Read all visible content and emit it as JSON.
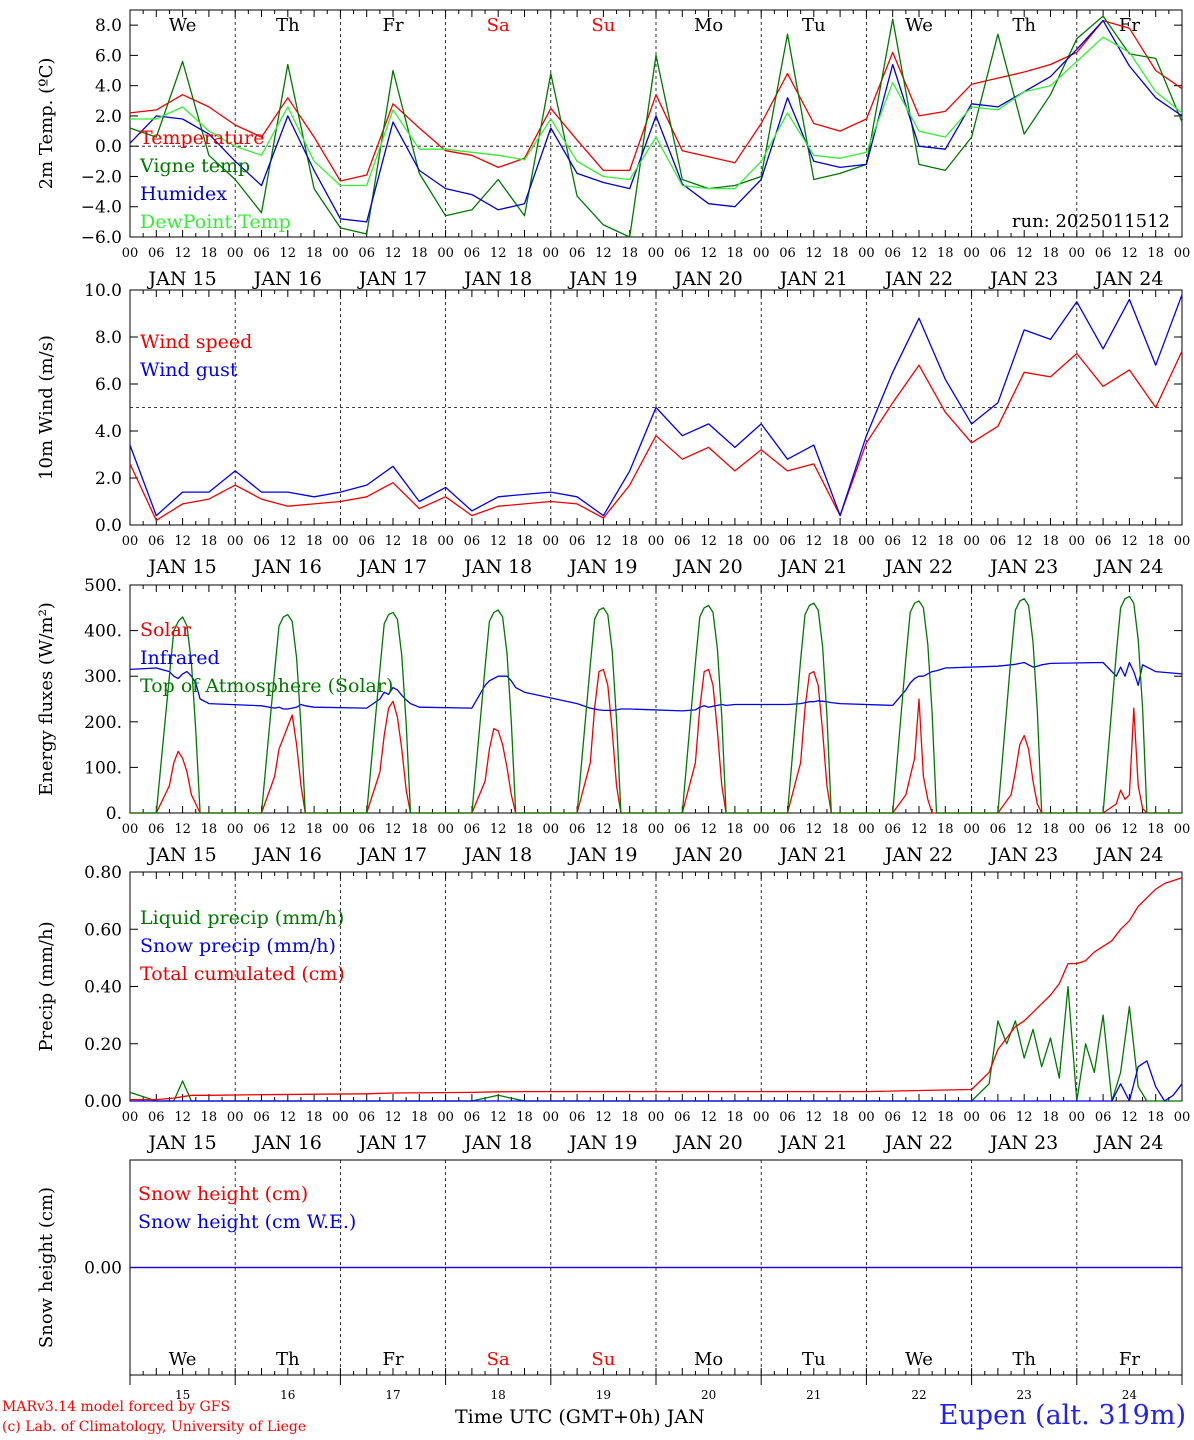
{
  "time_axis": {
    "start_day": 15,
    "days": 10,
    "step_hours": 6,
    "hour_labels": [
      "00",
      "06",
      "12",
      "18"
    ],
    "date_labels": [
      "JAN 15",
      "JAN 16",
      "JAN 17",
      "JAN 18",
      "JAN 19",
      "JAN 20",
      "JAN 21",
      "JAN 22",
      "JAN 23",
      "JAN 24"
    ],
    "weekday_labels": [
      "We",
      "Th",
      "Fr",
      "Sa",
      "Su",
      "Mo",
      "Tu",
      "We",
      "Th",
      "Fr"
    ],
    "weekday_colors": [
      "#000000",
      "#000000",
      "#000000",
      "#ff0000",
      "#ff0000",
      "#000000",
      "#000000",
      "#000000",
      "#000000",
      "#000000"
    ],
    "day_numbers": [
      "15",
      "16",
      "17",
      "18",
      "19",
      "20",
      "21",
      "22",
      "23",
      "24"
    ],
    "title": "Time UTC (GMT+0h) JAN"
  },
  "credits": {
    "line1": "MARv3.14 model forced by GFS",
    "line2": "(c) Lab. of Climatology, University of Liege"
  },
  "station": "Eupen (alt. 319m)",
  "chart_data": [
    {
      "type": "line",
      "ylabel": "2m Temp. (ºC)",
      "ylim": [
        -6,
        9
      ],
      "yticks": [
        -6,
        -4,
        -2,
        0,
        2,
        4,
        6,
        8
      ],
      "ytick_labels": [
        "−6.0",
        "−4.0",
        "−2.0",
        "0.0",
        "2.0",
        "4.0",
        "6.0",
        "8.0"
      ],
      "reference_line": 0,
      "annotation": "run: 2025011512",
      "x_hours": [
        0,
        6,
        12,
        18,
        24,
        30,
        36,
        42,
        48,
        54,
        60,
        66,
        72,
        78,
        84,
        90,
        96,
        102,
        108,
        114,
        120,
        126,
        132,
        138,
        144,
        150,
        156,
        162,
        168,
        174,
        180,
        186,
        192,
        198,
        204,
        210,
        216,
        222,
        228,
        234,
        240
      ],
      "series": [
        {
          "name": "Temperature",
          "color": "#ee0000",
          "values": [
            2.2,
            2.4,
            3.4,
            2.6,
            1.4,
            0.6,
            3.2,
            0.6,
            -2.3,
            -1.9,
            2.8,
            1.2,
            -0.3,
            -0.6,
            -1.4,
            -0.8,
            2.5,
            0.4,
            -1.6,
            -1.6,
            3.4,
            -0.3,
            -0.7,
            -1.1,
            1.5,
            4.8,
            1.5,
            1.0,
            1.8,
            6.2,
            2.0,
            2.3,
            4.1,
            4.5,
            4.9,
            5.4,
            6.2,
            8.3,
            7.8,
            5.0,
            3.8
          ]
        },
        {
          "name": "Vigne temp",
          "color": "#007700",
          "values": [
            1.2,
            0.6,
            5.6,
            -0.6,
            -2.2,
            -4.4,
            5.4,
            -2.8,
            -5.4,
            -5.8,
            5.0,
            -1.8,
            -4.6,
            -4.2,
            -2.2,
            -4.6,
            4.8,
            -3.3,
            -5.2,
            -6.0,
            6.0,
            -2.2,
            -2.8,
            -2.6,
            -2.0,
            7.4,
            -2.2,
            -1.8,
            -1.2,
            8.4,
            -1.2,
            -1.6,
            0.6,
            7.4,
            0.8,
            3.4,
            7.1,
            8.6,
            6.1,
            5.8,
            1.6
          ]
        },
        {
          "name": "Humidex",
          "color": "#0000cc",
          "values": [
            0.2,
            2.0,
            1.8,
            0.8,
            -1.0,
            -2.6,
            2.0,
            -1.6,
            -4.8,
            -5.0,
            1.6,
            -1.6,
            -2.8,
            -3.2,
            -4.2,
            -3.8,
            1.2,
            -1.8,
            -2.4,
            -2.8,
            2.0,
            -2.5,
            -3.8,
            -4.0,
            -2.2,
            3.2,
            -1.0,
            -1.4,
            -1.2,
            5.4,
            0.0,
            -0.2,
            2.8,
            2.6,
            3.6,
            4.6,
            6.4,
            8.3,
            5.3,
            3.2,
            2.0
          ]
        },
        {
          "name": "DewPoint Temp",
          "color": "#33ee33",
          "values": [
            1.8,
            1.8,
            2.6,
            1.0,
            0.0,
            -0.6,
            2.6,
            -1.0,
            -2.6,
            -2.6,
            2.4,
            -0.2,
            -0.2,
            -0.4,
            -0.6,
            -0.9,
            1.8,
            -1.0,
            -2.0,
            -2.2,
            0.6,
            -2.6,
            -2.8,
            -2.8,
            -1.0,
            2.2,
            -0.6,
            -0.8,
            -0.4,
            4.2,
            1.0,
            0.6,
            2.6,
            2.4,
            3.6,
            4.0,
            5.6,
            7.2,
            6.2,
            3.6,
            2.2
          ]
        }
      ]
    },
    {
      "type": "line",
      "ylabel": "10m Wind (m/s)",
      "ylim": [
        0,
        10
      ],
      "yticks": [
        0,
        2,
        4,
        6,
        8,
        10
      ],
      "ytick_labels": [
        "0.0",
        "2.0",
        "4.0",
        "6.0",
        "8.0",
        "10.0"
      ],
      "reference_line": 5,
      "x_hours": [
        0,
        6,
        12,
        18,
        24,
        30,
        36,
        42,
        48,
        54,
        60,
        66,
        72,
        78,
        84,
        90,
        96,
        102,
        108,
        114,
        120,
        126,
        132,
        138,
        144,
        150,
        156,
        162,
        168,
        174,
        180,
        186,
        192,
        198,
        204,
        210,
        216,
        222,
        228,
        234,
        240
      ],
      "series": [
        {
          "name": "Wind speed",
          "color": "#ee0000",
          "values": [
            2.6,
            0.2,
            0.9,
            1.1,
            1.7,
            1.1,
            0.8,
            0.9,
            1.0,
            1.2,
            1.8,
            0.7,
            1.2,
            0.4,
            0.8,
            0.9,
            1.0,
            0.9,
            0.3,
            1.7,
            3.8,
            2.8,
            3.3,
            2.3,
            3.2,
            2.3,
            2.6,
            0.4,
            3.5,
            5.2,
            6.8,
            4.8,
            3.5,
            4.2,
            6.5,
            6.3,
            7.3,
            5.9,
            6.6,
            5.0,
            7.4
          ]
        },
        {
          "name": "Wind gust",
          "color": "#0000ee",
          "values": [
            3.4,
            0.4,
            1.4,
            1.4,
            2.3,
            1.4,
            1.4,
            1.2,
            1.4,
            1.7,
            2.5,
            1.0,
            1.6,
            0.6,
            1.2,
            1.3,
            1.4,
            1.2,
            0.4,
            2.3,
            5.0,
            3.8,
            4.3,
            3.3,
            4.3,
            2.8,
            3.4,
            0.4,
            3.8,
            6.5,
            8.8,
            6.2,
            4.3,
            5.2,
            8.3,
            7.9,
            9.5,
            7.5,
            9.6,
            6.8,
            9.8
          ]
        }
      ]
    },
    {
      "type": "line",
      "ylabel": "Energy fluxes (W/m²)",
      "ylim": [
        0,
        500
      ],
      "yticks": [
        0,
        100,
        200,
        300,
        400,
        500
      ],
      "ytick_labels": [
        "0.",
        "100.",
        "200.",
        "300.",
        "400.",
        "500."
      ],
      "x_hours": [
        0,
        6,
        9,
        10,
        11,
        12,
        13,
        14,
        15,
        16,
        18,
        30,
        33,
        34,
        35,
        36,
        37,
        38,
        39,
        40,
        42,
        54,
        57,
        58,
        59,
        60,
        61,
        62,
        63,
        64,
        66,
        78,
        81,
        82,
        83,
        84,
        85,
        86,
        87,
        88,
        90,
        102,
        105,
        106,
        107,
        108,
        109,
        110,
        111,
        112,
        114,
        126,
        129,
        130,
        131,
        132,
        133,
        134,
        135,
        136,
        138,
        150,
        153,
        154,
        155,
        156,
        157,
        158,
        159,
        160,
        162,
        174,
        177,
        178,
        179,
        180,
        181,
        182,
        183,
        184,
        186,
        198,
        201,
        202,
        203,
        204,
        205,
        206,
        207,
        208,
        210,
        222,
        225,
        226,
        227,
        228,
        229,
        230,
        231,
        232,
        234,
        240
      ],
      "series": [
        {
          "name": "Solar",
          "color": "#ee0000",
          "values": [
            0,
            0,
            60,
            110,
            135,
            120,
            90,
            40,
            20,
            0,
            0,
            0,
            80,
            140,
            165,
            190,
            215,
            150,
            60,
            0,
            0,
            0,
            90,
            170,
            230,
            245,
            210,
            140,
            50,
            0,
            0,
            0,
            70,
            140,
            185,
            180,
            150,
            100,
            40,
            0,
            0,
            0,
            110,
            230,
            310,
            315,
            280,
            180,
            60,
            0,
            0,
            0,
            110,
            230,
            310,
            315,
            280,
            180,
            60,
            0,
            0,
            0,
            110,
            230,
            305,
            310,
            280,
            180,
            60,
            0,
            0,
            0,
            40,
            80,
            120,
            250,
            80,
            30,
            0,
            0,
            0,
            0,
            40,
            90,
            150,
            170,
            140,
            70,
            20,
            0,
            0,
            0,
            20,
            50,
            30,
            40,
            230,
            60,
            10,
            0,
            0,
            0
          ]
        },
        {
          "name": "Infrared",
          "color": "#0000ee",
          "values": [
            315,
            318,
            310,
            300,
            295,
            305,
            310,
            300,
            285,
            250,
            240,
            235,
            230,
            232,
            228,
            228,
            230,
            232,
            238,
            235,
            232,
            230,
            250,
            265,
            260,
            275,
            270,
            258,
            248,
            240,
            232,
            230,
            280,
            290,
            295,
            300,
            300,
            300,
            290,
            275,
            265,
            240,
            230,
            228,
            226,
            225,
            225,
            225,
            226,
            228,
            228,
            224,
            226,
            232,
            235,
            232,
            234,
            236,
            238,
            236,
            238,
            238,
            240,
            242,
            244,
            244,
            246,
            245,
            244,
            242,
            240,
            236,
            270,
            285,
            295,
            300,
            300,
            305,
            310,
            312,
            318,
            322,
            325,
            326,
            328,
            330,
            325,
            320,
            322,
            325,
            328,
            330,
            300,
            320,
            300,
            330,
            310,
            280,
            325,
            320,
            310,
            305
          ]
        },
        {
          "name": "Top of Atmosphere (Solar)",
          "color": "#007700",
          "values": [
            0,
            0,
            300,
            400,
            420,
            430,
            410,
            330,
            180,
            0,
            0,
            0,
            310,
            410,
            430,
            435,
            420,
            340,
            190,
            0,
            0,
            0,
            315,
            415,
            435,
            440,
            425,
            345,
            195,
            0,
            0,
            0,
            320,
            420,
            440,
            445,
            430,
            350,
            200,
            0,
            0,
            0,
            325,
            425,
            445,
            450,
            435,
            355,
            205,
            0,
            0,
            0,
            330,
            430,
            450,
            455,
            440,
            360,
            210,
            0,
            0,
            0,
            335,
            435,
            455,
            460,
            445,
            365,
            215,
            0,
            0,
            0,
            340,
            440,
            460,
            465,
            450,
            370,
            220,
            0,
            0,
            0,
            345,
            445,
            465,
            470,
            455,
            375,
            225,
            0,
            0,
            0,
            350,
            450,
            470,
            475,
            460,
            380,
            230,
            0,
            0,
            0
          ]
        }
      ]
    },
    {
      "type": "line",
      "ylabel": "Precip (mm/h)",
      "ylim": [
        0,
        0.8
      ],
      "yticks": [
        0,
        0.2,
        0.4,
        0.6,
        0.8
      ],
      "ytick_labels": [
        "0.00",
        "0.20",
        "0.40",
        "0.60",
        "0.80"
      ],
      "x_hours": [
        0,
        6,
        10,
        12,
        14,
        18,
        30,
        54,
        60,
        78,
        84,
        90,
        96,
        120,
        144,
        168,
        192,
        196,
        198,
        200,
        202,
        204,
        206,
        208,
        210,
        212,
        214,
        216,
        218,
        220,
        222,
        224,
        226,
        228,
        230,
        232,
        234,
        236,
        238,
        240
      ],
      "series": [
        {
          "name": "Liquid precip (mm/h)",
          "color": "#007700",
          "values": [
            0.03,
            0.0,
            0.0,
            0.07,
            0.0,
            0.0,
            0.0,
            0.0,
            0.0,
            0.0,
            0.02,
            0.0,
            0.0,
            0.0,
            0.0,
            0.0,
            0.0,
            0.06,
            0.28,
            0.2,
            0.28,
            0.15,
            0.25,
            0.12,
            0.22,
            0.08,
            0.4,
            0.0,
            0.2,
            0.1,
            0.3,
            0.0,
            0.1,
            0.33,
            0.05,
            0.0,
            0.0,
            0.0,
            0.0,
            0.0
          ]
        },
        {
          "name": "Snow precip (mm/h)",
          "color": "#0000ee",
          "values": [
            0.0,
            0.0,
            0.0,
            0.0,
            0.0,
            0.0,
            0.0,
            0.0,
            0.0,
            0.0,
            0.0,
            0.0,
            0.0,
            0.0,
            0.0,
            0.0,
            0.0,
            0.0,
            0.0,
            0.0,
            0.0,
            0.0,
            0.0,
            0.0,
            0.0,
            0.0,
            0.0,
            0.0,
            0.0,
            0.0,
            0.0,
            0.0,
            0.06,
            0.0,
            0.12,
            0.14,
            0.05,
            0.0,
            0.02,
            0.06
          ]
        },
        {
          "name": "Total cumulated (cm)",
          "color": "#ee0000",
          "values": [
            0.005,
            0.005,
            0.01,
            0.015,
            0.02,
            0.02,
            0.022,
            0.025,
            0.028,
            0.03,
            0.032,
            0.033,
            0.033,
            0.033,
            0.033,
            0.033,
            0.04,
            0.1,
            0.18,
            0.22,
            0.26,
            0.28,
            0.31,
            0.34,
            0.37,
            0.41,
            0.48,
            0.48,
            0.49,
            0.52,
            0.54,
            0.56,
            0.6,
            0.63,
            0.68,
            0.71,
            0.74,
            0.76,
            0.77,
            0.78
          ]
        }
      ]
    },
    {
      "type": "line",
      "ylabel": "Snow height (cm)",
      "ylim": [
        -1,
        1
      ],
      "yticks": [
        0
      ],
      "ytick_labels": [
        "0.00"
      ],
      "x_hours": [
        0,
        240
      ],
      "series": [
        {
          "name": "Snow height (cm)",
          "color": "#ee0000",
          "values": [
            0,
            0
          ]
        },
        {
          "name": "Snow height (cm W.E.)",
          "color": "#0000ee",
          "values": [
            0,
            0
          ]
        }
      ]
    }
  ]
}
